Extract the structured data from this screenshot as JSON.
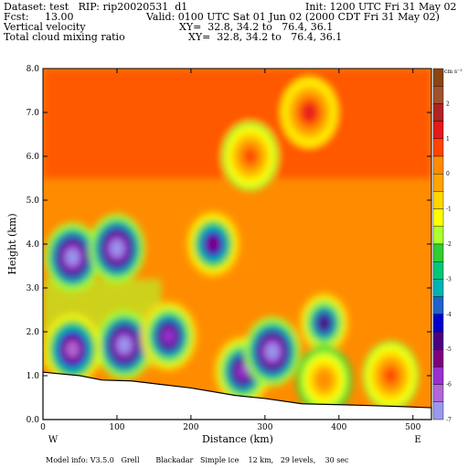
{
  "header": {
    "dataset_line": "Dataset: test   RIP: rip20020531  d1",
    "init_line": "Init: 1200 UTC Fri 31 May 02",
    "fcst_line": "Fcst:     13.00",
    "valid_line": "Valid: 0100 UTC Sat 01 Jun 02 (2000 CDT Fri 31 May 02)",
    "field1_name": "Vertical velocity",
    "field1_xy": "XY=  32.8, 34.2 to   76.4, 36.1",
    "field2_name": "Total cloud mixing ratio",
    "field2_xy": "XY=  32.8, 34.2 to   76.4, 36.1"
  },
  "footer": {
    "model_info": "Model info: V3.5.0   Grell       Blackadar   Simple ice    12 km,   29 levels,    30 sec"
  },
  "chart_data": {
    "type": "heatmap",
    "xlabel": "Distance (km)",
    "ylabel": "Height (km)",
    "xlim": [
      0,
      525
    ],
    "ylim": [
      0,
      8
    ],
    "x_ticks": [
      "0",
      "100",
      "200",
      "300",
      "400",
      "500"
    ],
    "x_tick_values": [
      0,
      100,
      200,
      300,
      400,
      500
    ],
    "y_ticks": [
      "0.0",
      "1.0",
      "2.0",
      "3.0",
      "4.0",
      "5.0",
      "6.0",
      "7.0",
      "8.0"
    ],
    "y_tick_values": [
      0,
      1,
      2,
      3,
      4,
      5,
      6,
      7,
      8
    ],
    "x_end_labels": {
      "left": "W",
      "right": "E"
    },
    "colorbar": {
      "unit": "cm s⁻¹",
      "labels": [
        "2",
        "1",
        "0",
        "-1",
        "-2",
        "-3",
        "-4",
        "-5",
        "-6",
        "-7"
      ],
      "colors": [
        "#8b4513",
        "#a0522d",
        "#b22222",
        "#e31a1c",
        "#ff4500",
        "#ff8c00",
        "#ffa500",
        "#ffd700",
        "#ffff00",
        "#adff2f",
        "#32cd32",
        "#00c878",
        "#00b4b4",
        "#1e64c8",
        "#0000cd",
        "#4b0082",
        "#800080",
        "#9932cc",
        "#b266d9",
        "#9999ee"
      ]
    },
    "terrain_km": [
      [
        0,
        1.08
      ],
      [
        50,
        1.0
      ],
      [
        80,
        0.9
      ],
      [
        120,
        0.88
      ],
      [
        160,
        0.8
      ],
      [
        200,
        0.72
      ],
      [
        260,
        0.55
      ],
      [
        300,
        0.48
      ],
      [
        350,
        0.36
      ],
      [
        420,
        0.33
      ],
      [
        480,
        0.3
      ],
      [
        525,
        0.27
      ]
    ],
    "features": [
      {
        "x": 40,
        "y": 3.7,
        "level": 19
      },
      {
        "x": 100,
        "y": 3.9,
        "level": 19
      },
      {
        "x": 110,
        "y": 1.7,
        "level": 19
      },
      {
        "x": 40,
        "y": 1.6,
        "level": 18
      },
      {
        "x": 170,
        "y": 1.9,
        "level": 17
      },
      {
        "x": 230,
        "y": 4.0,
        "level": 16
      },
      {
        "x": 270,
        "y": 1.1,
        "level": 17
      },
      {
        "x": 310,
        "y": 1.55,
        "level": 19
      },
      {
        "x": 380,
        "y": 2.2,
        "level": 15
      },
      {
        "x": 360,
        "y": 7.0,
        "level": 3
      },
      {
        "x": 280,
        "y": 6.0,
        "level": 4
      },
      {
        "x": 470,
        "y": 1.0,
        "level": 4
      },
      {
        "x": 380,
        "y": 0.9,
        "level": 5
      }
    ]
  }
}
